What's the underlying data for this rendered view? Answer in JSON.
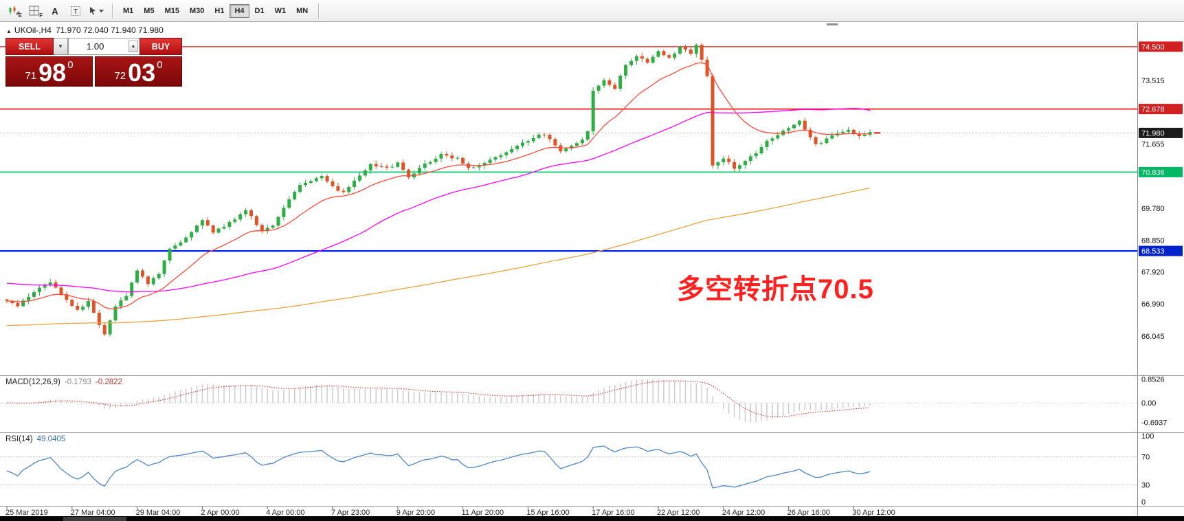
{
  "toolbar": {
    "icons": [
      {
        "name": "chart-objects-icon",
        "sub": "E",
        "glyph": ""
      },
      {
        "name": "grid-tool-icon",
        "sub": "F",
        "glyph": ""
      },
      {
        "name": "insert-text-icon",
        "sub": "",
        "glyph": "A"
      },
      {
        "name": "text-label-icon",
        "sub": "",
        "glyph": "T"
      },
      {
        "name": "arrow-objects-icon",
        "sub": "",
        "glyph": ""
      }
    ],
    "timeframes": [
      "M1",
      "M5",
      "M15",
      "M30",
      "H1",
      "H4",
      "D1",
      "W1",
      "MN"
    ],
    "active_timeframe": "H4"
  },
  "chart_header": {
    "symbol": "UKOil-,H4",
    "ohlc": "71.970 72.040 71.940 71.980"
  },
  "trade_panel": {
    "sell_label": "SELL",
    "buy_label": "BUY",
    "volume": "1.00",
    "sell_price": {
      "prefix": "71",
      "big": "98",
      "sup": "0"
    },
    "buy_price": {
      "prefix": "72",
      "big": "03",
      "sup": "0"
    }
  },
  "chart_data": {
    "type": "candlestick",
    "symbol": "UKOil-,H4",
    "timeframe": "H4",
    "ohlc_current": {
      "open": 71.97,
      "high": 72.04,
      "low": 71.94,
      "close": 71.98
    },
    "current_price": 71.98,
    "bars": 160,
    "noise": 0.07,
    "y_range": [
      64.9,
      75.2
    ],
    "price_path": [
      [
        0,
        67.1
      ],
      [
        2,
        66.9
      ],
      [
        5,
        67.35
      ],
      [
        8,
        67.62
      ],
      [
        10,
        67.28
      ],
      [
        13,
        66.78
      ],
      [
        15,
        67.05
      ],
      [
        17,
        66.4
      ],
      [
        18,
        66.12
      ],
      [
        20,
        66.9
      ],
      [
        22,
        67.25
      ],
      [
        24,
        67.95
      ],
      [
        26,
        67.58
      ],
      [
        28,
        67.85
      ],
      [
        30,
        68.6
      ],
      [
        33,
        68.92
      ],
      [
        36,
        69.45
      ],
      [
        38,
        69.08
      ],
      [
        41,
        69.35
      ],
      [
        44,
        69.72
      ],
      [
        47,
        69.12
      ],
      [
        49,
        69.3
      ],
      [
        52,
        70.05
      ],
      [
        54,
        70.48
      ],
      [
        56,
        70.6
      ],
      [
        58,
        70.72
      ],
      [
        60,
        70.4
      ],
      [
        62,
        70.22
      ],
      [
        65,
        70.75
      ],
      [
        67,
        71.05
      ],
      [
        70,
        70.95
      ],
      [
        72,
        71.1
      ],
      [
        74,
        70.68
      ],
      [
        77,
        71.05
      ],
      [
        80,
        71.35
      ],
      [
        83,
        71.22
      ],
      [
        85,
        70.92
      ],
      [
        88,
        71.12
      ],
      [
        91,
        71.32
      ],
      [
        94,
        71.58
      ],
      [
        97,
        71.85
      ],
      [
        99,
        71.95
      ],
      [
        102,
        71.45
      ],
      [
        104,
        71.62
      ],
      [
        106,
        71.78
      ],
      [
        107,
        72.0
      ],
      [
        108,
        73.2
      ],
      [
        110,
        73.52
      ],
      [
        112,
        73.3
      ],
      [
        114,
        73.95
      ],
      [
        116,
        74.25
      ],
      [
        118,
        74.05
      ],
      [
        120,
        74.35
      ],
      [
        122,
        74.18
      ],
      [
        124,
        74.48
      ],
      [
        126,
        74.3
      ],
      [
        127,
        74.52
      ],
      [
        128,
        74.15
      ],
      [
        129,
        73.65
      ],
      [
        130,
        71.05
      ],
      [
        132,
        71.25
      ],
      [
        134,
        70.95
      ],
      [
        136,
        71.18
      ],
      [
        138,
        71.4
      ],
      [
        140,
        71.75
      ],
      [
        142,
        71.95
      ],
      [
        144,
        72.15
      ],
      [
        146,
        72.32
      ],
      [
        148,
        71.85
      ],
      [
        149,
        71.62
      ],
      [
        151,
        71.8
      ],
      [
        153,
        71.95
      ],
      [
        155,
        72.05
      ],
      [
        157,
        71.9
      ],
      [
        159,
        71.98
      ]
    ],
    "candle_up_color": "#2eae45",
    "candle_down_color": "#df5426",
    "hlines": [
      {
        "price": 74.5,
        "color": "#dd1f1f",
        "width": 1.4
      },
      {
        "price": 72.678,
        "color": "#dd1f1f",
        "width": 1.7
      },
      {
        "price": 71.98,
        "dashed": true
      },
      {
        "price": 70.836,
        "color": "#00cf6f",
        "width": 1.8
      },
      {
        "price": 68.533,
        "color": "#0022ee",
        "width": 2.2
      }
    ],
    "price_axis_labels": [
      {
        "text": "74.500",
        "price": 74.5,
        "bg": "#d22020"
      },
      {
        "text": "73.515",
        "price": 73.515,
        "bg": null
      },
      {
        "text": "72.678",
        "price": 72.678,
        "bg": "#d22020"
      },
      {
        "text": "71.980",
        "price": 71.98,
        "bg": "#1b1b1b"
      },
      {
        "text": "71.655",
        "price": 71.655,
        "bg": null
      },
      {
        "text": "70.836",
        "price": 70.836,
        "bg": "#00b863"
      },
      {
        "text": "69.780",
        "price": 69.78,
        "bg": null
      },
      {
        "text": "68.850",
        "price": 68.85,
        "bg": null
      },
      {
        "text": "68.533",
        "price": 68.533,
        "bg": "#0022cc"
      },
      {
        "text": "67.920",
        "price": 67.92,
        "bg": null
      },
      {
        "text": "66.990",
        "price": 66.99,
        "bg": null
      },
      {
        "text": "66.045",
        "price": 66.045,
        "bg": null
      }
    ],
    "moving_averages": [
      {
        "name": "slow",
        "type": "sma",
        "period": 170,
        "pad": 66.35,
        "color": "#eca43e"
      },
      {
        "name": "medium",
        "type": "sma",
        "period": 50,
        "pad": 67.6,
        "color": "#ff00ff"
      },
      {
        "name": "fast",
        "type": "ema",
        "period": 16,
        "pad": null,
        "color": "#ff4b38"
      }
    ],
    "annotation": {
      "text": "多空转折点70.5",
      "color": "#ff2020"
    },
    "time_axis": [
      "25 Mar 2019",
      "27 Mar 04:00",
      "29 Mar 04:00",
      "2 Apr 00:00",
      "4 Apr 00:00",
      "7 Apr 23:00",
      "9 Apr 20:00",
      "11 Apr 20:00",
      "15 Apr 16:00",
      "17 Apr 16:00",
      "22 Apr 12:00",
      "24 Apr 12:00",
      "26 Apr 16:00",
      "30 Apr 12:00"
    ],
    "indicators": {
      "macd": {
        "label": "MACD(12,26,9)",
        "value": "-0.1793",
        "signal_value": "-0.2822",
        "axis": [
          "0.8526",
          "0.00",
          "-0.6937"
        ],
        "max": 0.8526,
        "min": -0.6937,
        "histogram_color": "#c9c9c9",
        "signal_color": "#e03030"
      },
      "rsi": {
        "label": "RSI(14)",
        "value": "49.0405",
        "axis": [
          "100",
          "70",
          "30",
          "0"
        ],
        "levels": [
          70,
          30
        ],
        "line_color": "#4a86c8"
      }
    }
  }
}
